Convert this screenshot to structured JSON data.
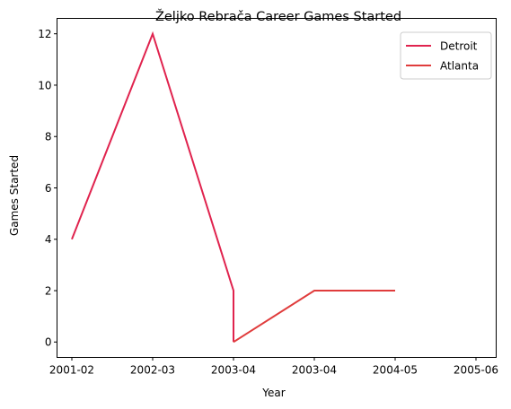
{
  "chart_data": {
    "type": "line",
    "title": "Željko Rebrača Career Games Started",
    "xlabel": "Year",
    "ylabel": "Games Started",
    "x_ticks": [
      "2001-02",
      "2002-03",
      "2003-04",
      "2003-04",
      "2004-05",
      "2005-06"
    ],
    "ylim": [
      -0.6,
      12.6
    ],
    "y_ticks": [
      0,
      2,
      4,
      6,
      8,
      10,
      12
    ],
    "grid": false,
    "legend_position": "top-right",
    "series": [
      {
        "name": "Detroit",
        "color": "#e0234e",
        "points": [
          {
            "x": 0,
            "y": 4
          },
          {
            "x": 1,
            "y": 12
          },
          {
            "x": 2,
            "y": 2
          },
          {
            "x": 2,
            "y": 0
          }
        ]
      },
      {
        "name": "Atlanta",
        "color": "#e03c3c",
        "points": [
          {
            "x": 2,
            "y": 0
          },
          {
            "x": 3,
            "y": 2
          },
          {
            "x": 4,
            "y": 2
          }
        ]
      }
    ]
  }
}
